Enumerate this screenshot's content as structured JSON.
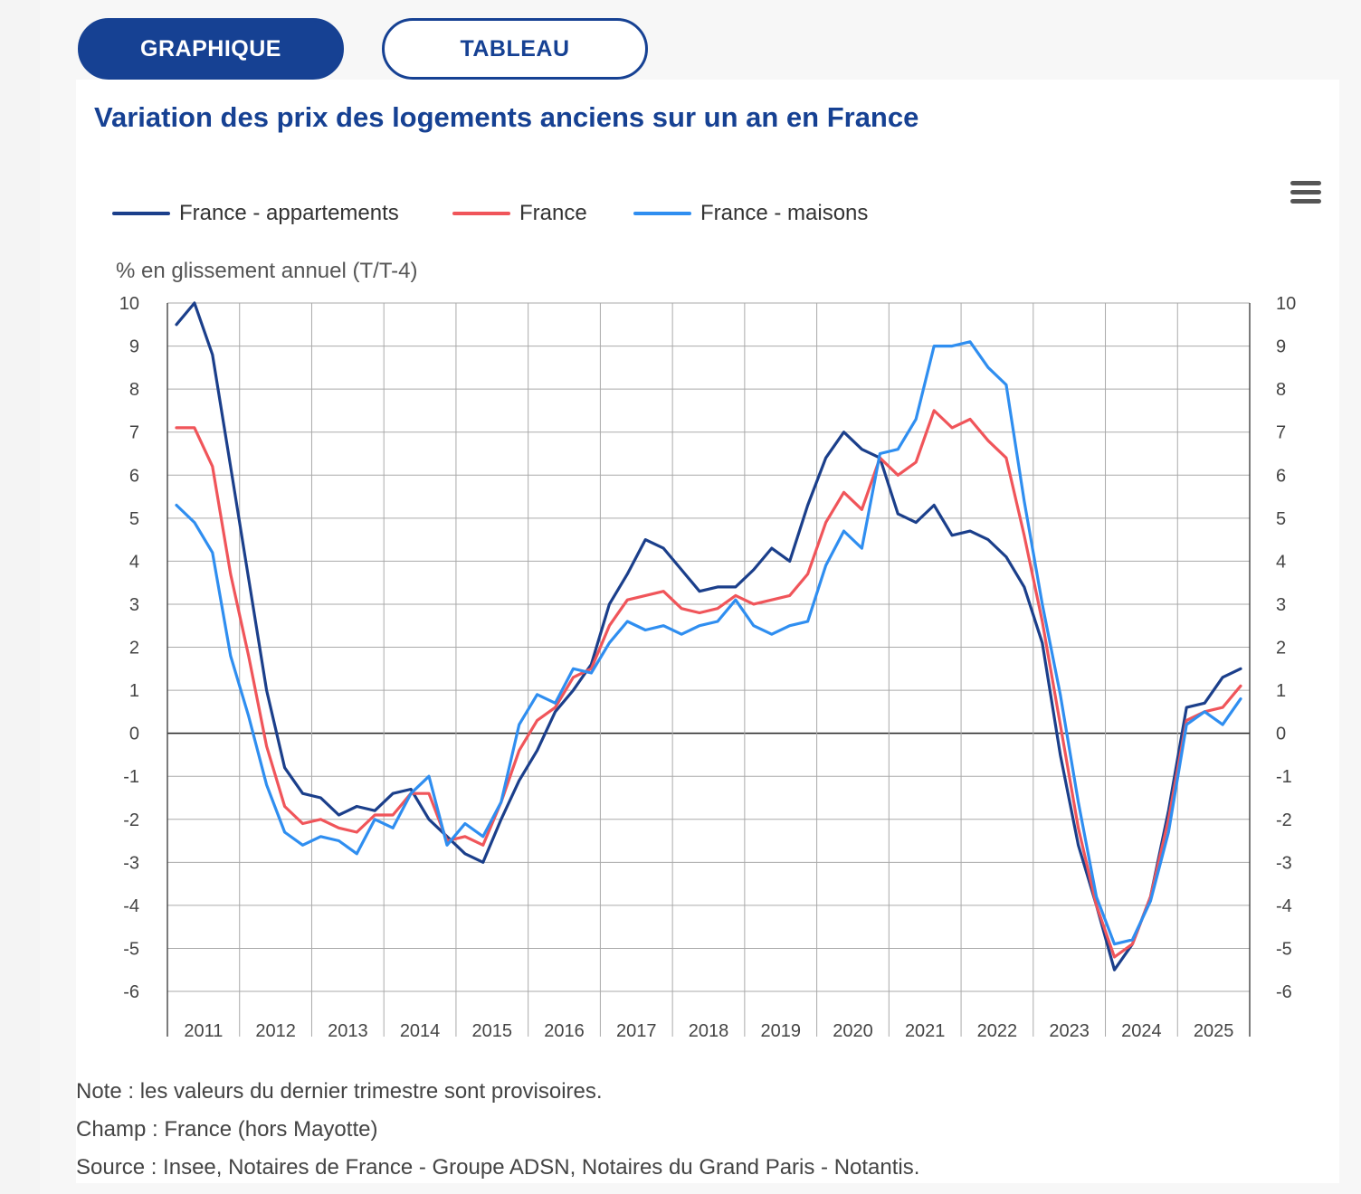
{
  "tabs": {
    "graph_label": "GRAPHIQUE",
    "table_label": "TABLEAU"
  },
  "title": "Variation des prix des logements anciens sur un an en France",
  "menu": {
    "icon": "hamburger-menu-icon"
  },
  "notes": [
    "Note : les valeurs du dernier trimestre sont provisoires.",
    "Champ : France (hors Mayotte)",
    "Source : Insee, Notaires de France - Groupe ADSN, Notaires du Grand Paris - Notantis."
  ],
  "chart_data": {
    "type": "line",
    "title": "Variation des prix des logements anciens sur un an en France",
    "ylabel": "% en glissement annuel (T/T-4)",
    "xlabel": "",
    "ylim": [
      -6,
      10
    ],
    "yticks": [
      10,
      9,
      8,
      7,
      6,
      5,
      4,
      3,
      2,
      1,
      0,
      -1,
      -2,
      -3,
      -4,
      -5,
      -6
    ],
    "grid": true,
    "legend_position": "top-left",
    "x_labels": [
      "2011",
      "2012",
      "2013",
      "2014",
      "2015",
      "2016",
      "2017",
      "2018",
      "2019",
      "2020",
      "2021",
      "2022",
      "2023",
      "2024",
      "2025"
    ],
    "quarters_per_year": 4,
    "x": [
      "2011-T1",
      "2011-T2",
      "2011-T3",
      "2011-T4",
      "2012-T1",
      "2012-T2",
      "2012-T3",
      "2012-T4",
      "2013-T1",
      "2013-T2",
      "2013-T3",
      "2013-T4",
      "2014-T1",
      "2014-T2",
      "2014-T3",
      "2014-T4",
      "2015-T1",
      "2015-T2",
      "2015-T3",
      "2015-T4",
      "2016-T1",
      "2016-T2",
      "2016-T3",
      "2016-T4",
      "2017-T1",
      "2017-T2",
      "2017-T3",
      "2017-T4",
      "2018-T1",
      "2018-T2",
      "2018-T3",
      "2018-T4",
      "2019-T1",
      "2019-T2",
      "2019-T3",
      "2019-T4",
      "2020-T1",
      "2020-T2",
      "2020-T3",
      "2020-T4",
      "2021-T1",
      "2021-T2",
      "2021-T3",
      "2021-T4",
      "2022-T1",
      "2022-T2",
      "2022-T3",
      "2022-T4",
      "2023-T1",
      "2023-T2",
      "2023-T3",
      "2023-T4",
      "2024-T1",
      "2024-T2",
      "2024-T3",
      "2024-T4",
      "2025-T1",
      "2025-T2",
      "2025-T3",
      "2025-T4"
    ],
    "series": [
      {
        "name": "France - appartements",
        "color": "#1b3f8b",
        "values": [
          9.5,
          10.0,
          8.8,
          6.2,
          3.6,
          1.0,
          -0.8,
          -1.4,
          -1.5,
          -1.9,
          -1.7,
          -1.8,
          -1.4,
          -1.3,
          -2.0,
          -2.4,
          -2.8,
          -3.0,
          -2.0,
          -1.1,
          -0.4,
          0.5,
          1.0,
          1.6,
          3.0,
          3.7,
          4.5,
          4.3,
          3.8,
          3.3,
          3.4,
          3.4,
          3.8,
          4.3,
          4.0,
          5.3,
          6.4,
          7.0,
          6.6,
          6.4,
          5.1,
          4.9,
          5.3,
          4.6,
          4.7,
          4.5,
          4.1,
          3.4,
          2.1,
          -0.5,
          -2.6,
          -4.0,
          -5.5,
          -4.9,
          -3.8,
          -1.8,
          0.6,
          0.7,
          1.3,
          1.5
        ]
      },
      {
        "name": "France",
        "color": "#f0555a",
        "values": [
          7.1,
          7.1,
          6.2,
          3.7,
          1.8,
          -0.3,
          -1.7,
          -2.1,
          -2.0,
          -2.2,
          -2.3,
          -1.9,
          -1.9,
          -1.4,
          -1.4,
          -2.5,
          -2.4,
          -2.6,
          -1.6,
          -0.4,
          0.3,
          0.6,
          1.3,
          1.5,
          2.5,
          3.1,
          3.2,
          3.3,
          2.9,
          2.8,
          2.9,
          3.2,
          3.0,
          3.1,
          3.2,
          3.7,
          4.9,
          5.6,
          5.2,
          6.4,
          6.0,
          6.3,
          7.5,
          7.1,
          7.3,
          6.8,
          6.4,
          4.6,
          2.6,
          0.2,
          -2.2,
          -4.0,
          -5.2,
          -4.9,
          -3.8,
          -2.0,
          0.3,
          0.5,
          0.6,
          1.1
        ]
      },
      {
        "name": "France - maisons",
        "color": "#2f8ef0",
        "values": [
          5.3,
          4.9,
          4.2,
          1.8,
          0.4,
          -1.2,
          -2.3,
          -2.6,
          -2.4,
          -2.5,
          -2.8,
          -2.0,
          -2.2,
          -1.4,
          -1.0,
          -2.6,
          -2.1,
          -2.4,
          -1.6,
          0.2,
          0.9,
          0.7,
          1.5,
          1.4,
          2.1,
          2.6,
          2.4,
          2.5,
          2.3,
          2.5,
          2.6,
          3.1,
          2.5,
          2.3,
          2.5,
          2.6,
          3.9,
          4.7,
          4.3,
          6.5,
          6.6,
          7.3,
          9.0,
          9.0,
          9.1,
          8.5,
          8.1,
          5.4,
          3.0,
          0.9,
          -1.6,
          -3.8,
          -4.9,
          -4.8,
          -3.9,
          -2.3,
          0.2,
          0.5,
          0.2,
          0.8
        ]
      }
    ]
  }
}
